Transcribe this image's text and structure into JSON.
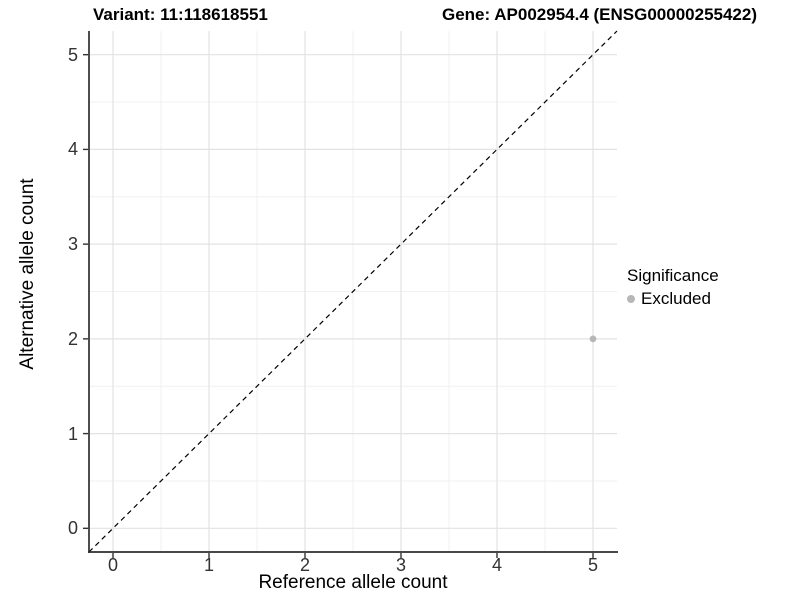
{
  "figure": {
    "background": "#ffffff",
    "titles": {
      "variant": "Variant: 11:118618551",
      "gene": "Gene: AP002954.4 (ENSG00000255422)"
    }
  },
  "chart_data": {
    "type": "scatter",
    "xlabel": "Reference allele count",
    "ylabel": "Alternative allele count",
    "xlim": [
      -0.25,
      5.25
    ],
    "ylim": [
      -0.25,
      5.25
    ],
    "x_ticks": [
      0,
      1,
      2,
      3,
      4,
      5
    ],
    "y_ticks": [
      0,
      1,
      2,
      3,
      4,
      5
    ],
    "x_minor_ticks": [
      0.5,
      1.5,
      2.5,
      3.5,
      4.5
    ],
    "y_minor_ticks": [
      0.5,
      1.5,
      2.5,
      3.5,
      4.5
    ],
    "grid": "major+minor",
    "reference_line": {
      "slope": 1,
      "intercept": 0,
      "style": "dashed",
      "color": "#000000"
    },
    "series": [
      {
        "name": "Excluded",
        "color": "#b7b7b7",
        "points": [
          [
            5,
            2
          ]
        ]
      }
    ],
    "legend": {
      "title": "Significance",
      "position": "right",
      "entries": [
        {
          "label": "Excluded",
          "color": "#b7b7b7"
        }
      ]
    },
    "colors": {
      "grid_major": "#e3e3e3",
      "grid_minor": "#f0f0f0",
      "axis_line": "#2e2e2e",
      "tick_mark": "#333333",
      "tick_text": "#333333"
    }
  }
}
